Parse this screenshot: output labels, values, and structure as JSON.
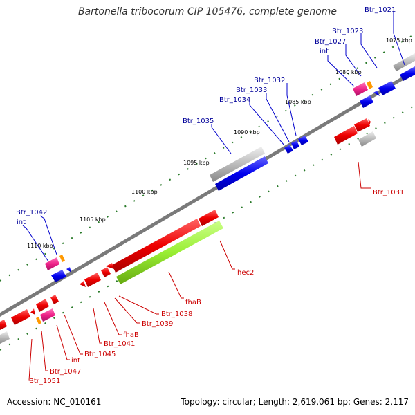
{
  "title": "Bartonella tribocorum CIP 105476, complete genome",
  "accession": "Accession: NC_010161",
  "summary": "Topology: circular; Length: 2,619,061 bp; Genes: 2,117",
  "colors": {
    "backbone": "#7a7a7a",
    "forward_gene": "#0000ee",
    "reverse_gene": "#ee0000",
    "rna": "#bbbbbb",
    "mobile": "#ee2288",
    "hec": "#99ee33",
    "marker": "#ff9900",
    "tick": "#2a7a2a",
    "label_forward": "#000099",
    "label_reverse": "#cc0000"
  },
  "scale_labels": [
    {
      "text": "1075 kbp"
    },
    {
      "text": "1080 kbp"
    },
    {
      "text": "1085 kbp"
    },
    {
      "text": "1090 kbp"
    },
    {
      "text": "1095 kbp"
    },
    {
      "text": "1100 kbp"
    },
    {
      "text": "1105 kbp"
    },
    {
      "text": "1110 kbp"
    }
  ],
  "labels_forward": [
    {
      "text": "Btr_1021"
    },
    {
      "text": "Btr_1023"
    },
    {
      "text": "Btr_1027"
    },
    {
      "text": "int"
    },
    {
      "text": "Btr_1032"
    },
    {
      "text": "Btr_1033"
    },
    {
      "text": "Btr_1034"
    },
    {
      "text": "Btr_1035"
    },
    {
      "text": "Btr_1042"
    },
    {
      "text": "int"
    }
  ],
  "labels_reverse": [
    {
      "text": "Btr_1031"
    },
    {
      "text": "hec2"
    },
    {
      "text": "fhaB"
    },
    {
      "text": "Btr_1038"
    },
    {
      "text": "Btr_1039"
    },
    {
      "text": "fhaB"
    },
    {
      "text": "Btr_1041"
    },
    {
      "text": "Btr_1045"
    },
    {
      "text": "int"
    },
    {
      "text": "Btr_1047"
    },
    {
      "text": "Btr_1051"
    }
  ]
}
